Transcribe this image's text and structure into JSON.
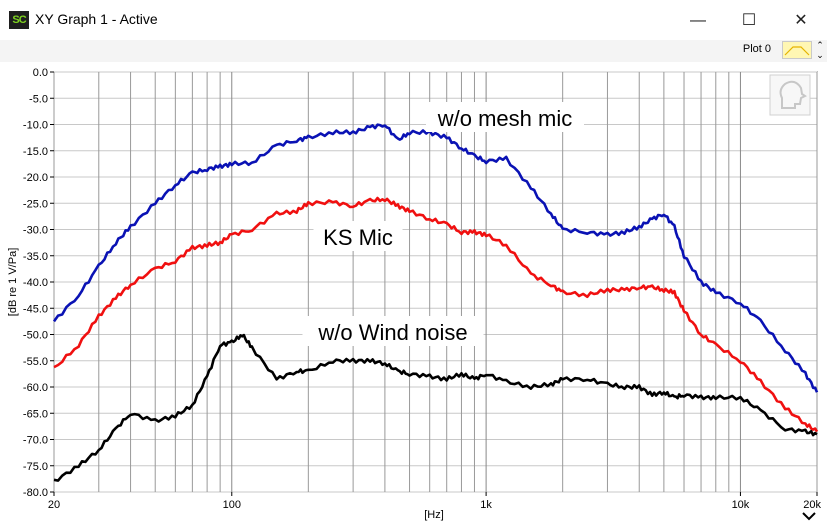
{
  "window": {
    "icon_text": "SC",
    "title": "XY Graph 1 - Active",
    "minimize": "—",
    "maximize": "☐",
    "close": "✕"
  },
  "toolbar": {
    "plot_label": "Plot 0",
    "spin_up": "⌃",
    "spin_down": "⌄"
  },
  "colors": {
    "blue": "#0a12b4",
    "red": "#f01010",
    "black": "#000000",
    "grid": "#999999"
  },
  "icons": {
    "corner_icon": "speaker-head-icon",
    "expand": "chevron-down-icon"
  },
  "chart_data": {
    "type": "line",
    "xlabel": "[Hz]",
    "ylabel": "[dB re 1 V/Pa]",
    "xscale": "log",
    "xlim": [
      20,
      20000
    ],
    "ylim": [
      -80,
      0
    ],
    "grid": true,
    "xtick_labels": [
      {
        "value": 20,
        "label": "20"
      },
      {
        "value": 100,
        "label": "100"
      },
      {
        "value": 1000,
        "label": "1k"
      },
      {
        "value": 10000,
        "label": "10k"
      },
      {
        "value": 20000,
        "label": "20k"
      }
    ],
    "ytick_labels": [
      "0.0",
      "-5.0",
      "-10.0",
      "-15.0",
      "-20.0",
      "-25.0",
      "-30.0",
      "-35.0",
      "-40.0",
      "-45.0",
      "-50.0",
      "-55.0",
      "-60.0",
      "-65.0",
      "-70.0",
      "-75.0",
      "-80.0"
    ],
    "annotations": [
      "w/o mesh mic",
      "KS Mic",
      "w/o Wind noise"
    ],
    "series": [
      {
        "name": "w/o mesh mic",
        "x": [
          20,
          25,
          30,
          35,
          40,
          50,
          60,
          70,
          80,
          90,
          100,
          120,
          150,
          180,
          200,
          250,
          300,
          350,
          400,
          450,
          500,
          600,
          700,
          800,
          900,
          1000,
          1200,
          1500,
          1800,
          2000,
          2500,
          3000,
          3500,
          4000,
          4500,
          5000,
          5500,
          6000,
          7000,
          8000,
          10000,
          12000,
          15000,
          18000,
          20000
        ],
        "y": [
          -47.5,
          -42.5,
          -37.0,
          -32.5,
          -29.5,
          -25.0,
          -21.5,
          -19.2,
          -18.5,
          -18.0,
          -17.5,
          -17.3,
          -14.0,
          -13.0,
          -12.5,
          -11.5,
          -11.5,
          -10.5,
          -10.0,
          -13.0,
          -11.5,
          -11.5,
          -12.5,
          -14.5,
          -16.0,
          -17.0,
          -16.5,
          -22.0,
          -27.0,
          -30.0,
          -30.5,
          -31.0,
          -30.5,
          -29.5,
          -28.0,
          -27.0,
          -29.5,
          -35.0,
          -40.0,
          -42.0,
          -44.0,
          -47.5,
          -53.0,
          -57.5,
          -61.0
        ]
      },
      {
        "name": "KS Mic",
        "x": [
          20,
          25,
          30,
          35,
          40,
          50,
          60,
          70,
          80,
          90,
          100,
          120,
          150,
          180,
          200,
          250,
          300,
          350,
          400,
          450,
          500,
          600,
          700,
          800,
          900,
          1000,
          1200,
          1500,
          1800,
          2000,
          2500,
          3000,
          3500,
          4000,
          4500,
          5000,
          5500,
          6000,
          7000,
          8000,
          10000,
          12000,
          15000,
          18000,
          20000
        ],
        "y": [
          -56.5,
          -52.0,
          -46.5,
          -43.0,
          -40.5,
          -37.5,
          -36.0,
          -33.5,
          -33.0,
          -32.5,
          -31.0,
          -30.0,
          -27.0,
          -26.5,
          -25.0,
          -24.8,
          -25.5,
          -24.5,
          -24.2,
          -25.5,
          -26.5,
          -28.0,
          -29.0,
          -30.5,
          -30.5,
          -31.0,
          -33.0,
          -38.5,
          -40.5,
          -42.0,
          -42.5,
          -41.5,
          -41.5,
          -41.0,
          -41.0,
          -41.5,
          -42.0,
          -45.5,
          -50.0,
          -52.0,
          -55.0,
          -59.0,
          -64.0,
          -67.0,
          -68.5
        ]
      },
      {
        "name": "w/o Wind noise",
        "x": [
          20,
          25,
          30,
          35,
          40,
          50,
          60,
          70,
          80,
          90,
          100,
          110,
          120,
          150,
          180,
          200,
          250,
          300,
          350,
          400,
          450,
          500,
          600,
          700,
          800,
          900,
          1000,
          1200,
          1500,
          1800,
          2000,
          2500,
          3000,
          3500,
          4000,
          4500,
          5000,
          5500,
          6000,
          7000,
          8000,
          10000,
          12000,
          15000,
          18000,
          20000
        ],
        "y": [
          -78.0,
          -75.0,
          -72.0,
          -68.0,
          -65.0,
          -66.5,
          -65.5,
          -63.5,
          -58.0,
          -52.0,
          -51.5,
          -50.0,
          -52.5,
          -58.5,
          -57.0,
          -57.0,
          -55.0,
          -55.0,
          -55.0,
          -55.5,
          -57.0,
          -57.5,
          -58.0,
          -58.5,
          -57.5,
          -58.5,
          -57.5,
          -59.0,
          -60.0,
          -59.5,
          -58.5,
          -58.5,
          -59.5,
          -60.0,
          -60.0,
          -61.5,
          -61.0,
          -62.0,
          -61.5,
          -62.0,
          -62.0,
          -62.0,
          -64.5,
          -68.0,
          -68.5,
          -69.0
        ]
      }
    ]
  }
}
